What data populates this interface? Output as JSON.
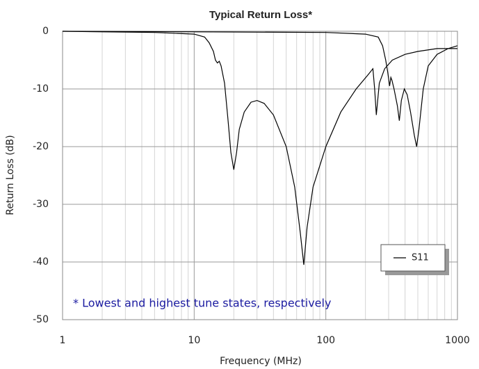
{
  "chart_data": {
    "type": "line",
    "title": "Typical Return Loss*",
    "xlabel": "Frequency (MHz)",
    "ylabel": "Return Loss (dB)",
    "annotation": "* Lowest and highest tune states, respectively",
    "xscale": "log",
    "xlim": [
      1,
      1000
    ],
    "xticks": [
      1,
      10,
      100,
      1000
    ],
    "ylim": [
      -50,
      0
    ],
    "yticks": [
      0,
      -10,
      -20,
      -30,
      -40,
      -50
    ],
    "grid": true,
    "minor_grid": true,
    "legend": "lower right",
    "series": [
      {
        "name": "S11",
        "color": "#000000",
        "x": [
          1,
          2,
          5,
          10,
          12,
          13,
          14,
          14.5,
          15,
          15.5,
          16,
          17,
          18,
          19,
          20,
          21,
          22,
          24,
          27,
          30,
          34,
          40,
          50,
          58,
          64,
          68,
          72,
          80,
          100,
          130,
          170,
          210,
          228,
          235,
          242,
          255,
          280,
          320,
          400,
          500,
          700,
          1000
        ],
        "values": [
          0,
          -0.1,
          -0.2,
          -0.5,
          -1,
          -2,
          -3.5,
          -5,
          -5.5,
          -5.2,
          -6,
          -9,
          -15,
          -21,
          -24,
          -21,
          -17,
          -14,
          -12.3,
          -12,
          -12.5,
          -14.5,
          -20,
          -27,
          -35,
          -40.5,
          -34,
          -27,
          -20,
          -14,
          -10,
          -7.5,
          -6.5,
          -10,
          -14.5,
          -9,
          -6.5,
          -5,
          -4,
          -3.5,
          -3,
          -3
        ]
      },
      {
        "color": "#000000",
        "x": [
          1,
          10,
          100,
          200,
          250,
          270,
          285,
          295,
          305,
          312,
          318,
          330,
          350,
          362,
          375,
          395,
          415,
          440,
          470,
          490,
          510,
          550,
          600,
          700,
          850,
          1000
        ],
        "values": [
          0,
          -0.1,
          -0.2,
          -0.5,
          -1,
          -2.5,
          -5,
          -7,
          -9.5,
          -8,
          -8.5,
          -10,
          -13,
          -15.5,
          -12,
          -10,
          -11,
          -14,
          -18,
          -20,
          -17,
          -10,
          -6,
          -4,
          -3,
          -2.5
        ]
      }
    ]
  }
}
